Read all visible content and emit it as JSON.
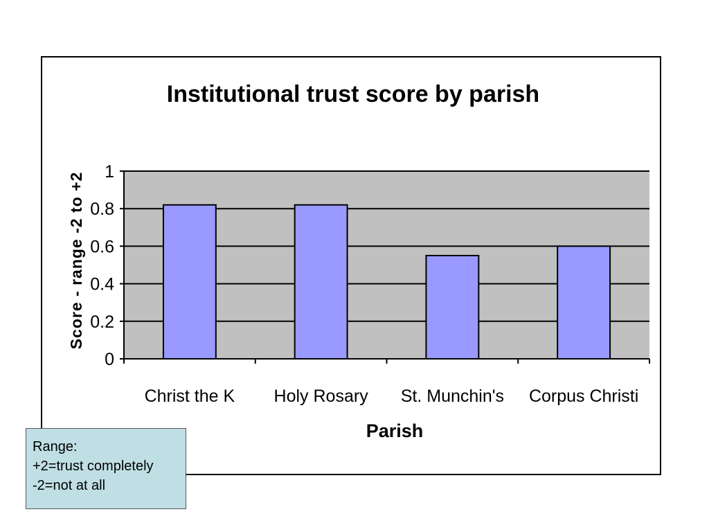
{
  "chart_data": {
    "type": "bar",
    "title": "Institutional trust score by parish",
    "xlabel": "Parish",
    "ylabel": "Score - range -2 to +2",
    "categories": [
      "Christ the K",
      "Holy Rosary",
      "St. Munchin's",
      "Corpus Christi"
    ],
    "values": [
      0.82,
      0.82,
      0.55,
      0.6
    ],
    "ylim": [
      0,
      1
    ],
    "yticks": [
      "0",
      "0.2",
      "0.4",
      "0.6",
      "0.8",
      "1"
    ],
    "grid": true,
    "legend": "none",
    "colors": {
      "bar": "#9999ff",
      "plot_background": "#c0c0c0",
      "gridline": "#000000"
    }
  },
  "note": {
    "lines": [
      "Range:",
      "+2=trust completely",
      "-2=not at all"
    ]
  }
}
